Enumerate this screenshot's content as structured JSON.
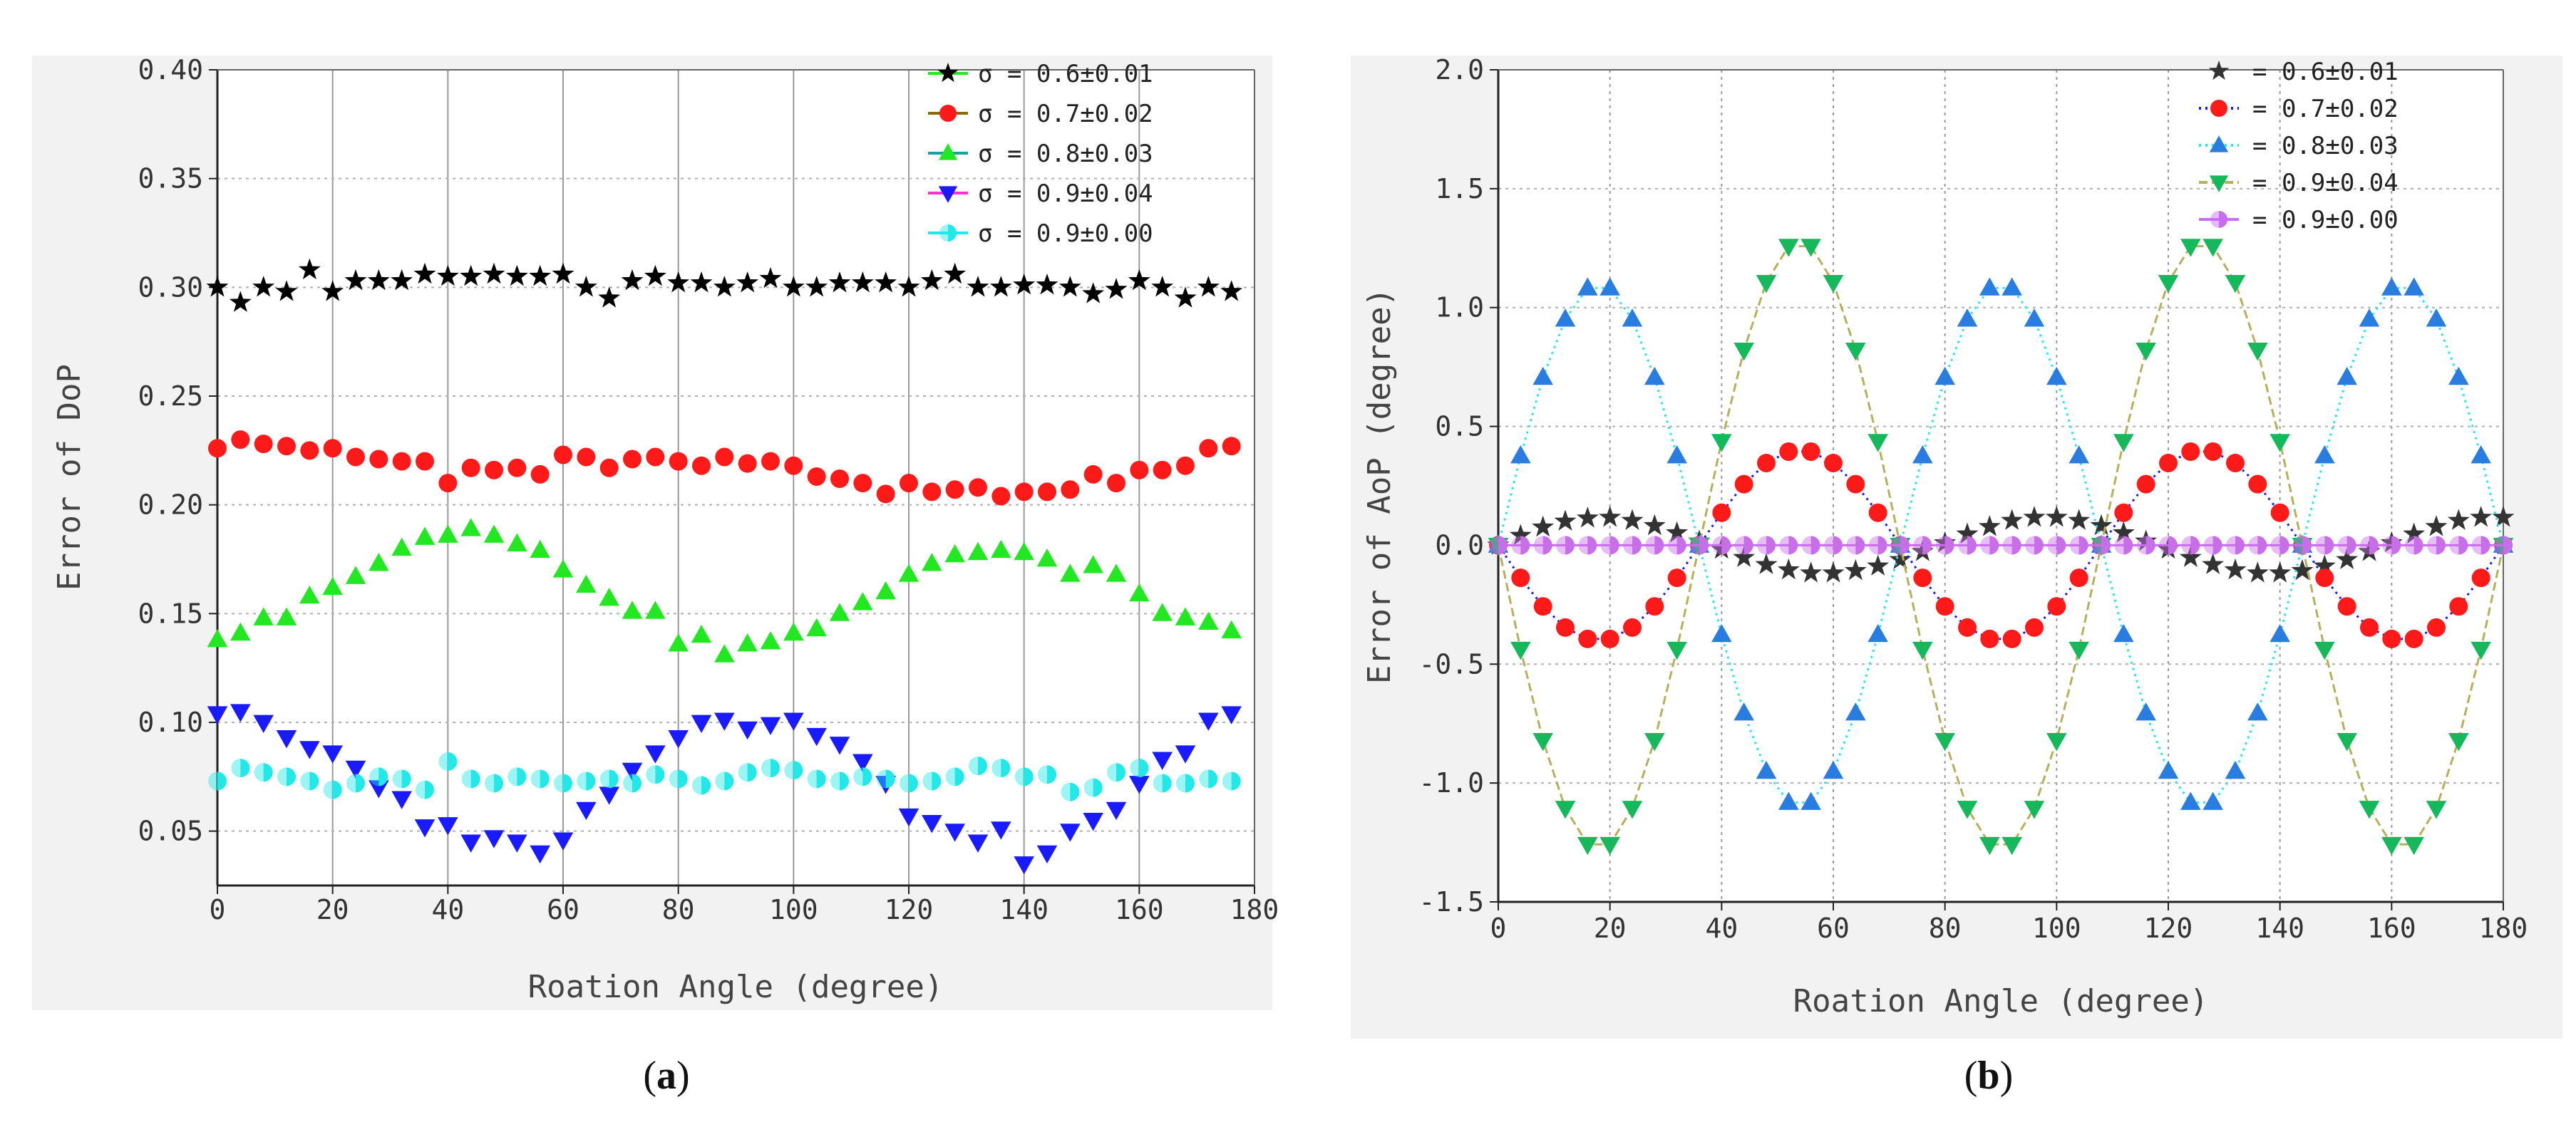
{
  "panel_labels": [
    "a",
    "b"
  ],
  "colors": {
    "black": "#000000",
    "red": "#ff1a1a",
    "green": "#22e822",
    "blue": "#1a1aff",
    "cyan": "#22e8e8",
    "darkgray": "#333333",
    "azure": "#2a7de0",
    "seagreen": "#15b85a",
    "violet": "#c86ee8",
    "olive": "#b5b05a",
    "maroon": "#8a6a10",
    "teal": "#1aa0a0",
    "magenta": "#ff33cc"
  },
  "chart_data": [
    {
      "type": "scatter",
      "panel": "a",
      "xlabel": "Roation Angle (degree)",
      "ylabel": "Error of DoP",
      "xlim": [
        0,
        180
      ],
      "ylim": [
        0.025,
        0.4
      ],
      "xticks": [
        "0",
        "20",
        "40",
        "60",
        "80",
        "100",
        "120",
        "140",
        "160",
        "180"
      ],
      "yticks": [
        "0.05",
        "0.10",
        "0.15",
        "0.20",
        "0.25",
        "0.30",
        "0.35",
        "0.40"
      ],
      "grid": "dotted",
      "legend_position": "top-right",
      "x": [
        0,
        4,
        8,
        12,
        16,
        20,
        24,
        28,
        32,
        36,
        40,
        44,
        48,
        52,
        56,
        60,
        64,
        68,
        72,
        76,
        80,
        84,
        88,
        92,
        96,
        100,
        104,
        108,
        112,
        116,
        120,
        124,
        128,
        132,
        136,
        140,
        144,
        148,
        152,
        156,
        160,
        164,
        168,
        172,
        176
      ],
      "series": [
        {
          "name": "σ = 0.6±0.01",
          "marker": "star",
          "color": "#000000",
          "line_color": "#22e822",
          "values": [
            0.3,
            0.293,
            0.3,
            0.298,
            0.308,
            0.298,
            0.303,
            0.303,
            0.303,
            0.306,
            0.305,
            0.305,
            0.306,
            0.305,
            0.305,
            0.306,
            0.3,
            0.295,
            0.303,
            0.305,
            0.302,
            0.302,
            0.3,
            0.302,
            0.304,
            0.3,
            0.3,
            0.302,
            0.302,
            0.302,
            0.3,
            0.303,
            0.306,
            0.3,
            0.3,
            0.301,
            0.301,
            0.3,
            0.297,
            0.299,
            0.303,
            0.3,
            0.295,
            0.3,
            0.298
          ]
        },
        {
          "name": "σ = 0.7±0.02",
          "marker": "circle",
          "color": "#ff1a1a",
          "line_color": "#8a6a10",
          "values": [
            0.226,
            0.23,
            0.228,
            0.227,
            0.225,
            0.226,
            0.222,
            0.221,
            0.22,
            0.22,
            0.21,
            0.217,
            0.216,
            0.217,
            0.214,
            0.223,
            0.222,
            0.217,
            0.221,
            0.222,
            0.22,
            0.218,
            0.222,
            0.219,
            0.22,
            0.218,
            0.213,
            0.212,
            0.21,
            0.205,
            0.21,
            0.206,
            0.207,
            0.208,
            0.204,
            0.206,
            0.206,
            0.207,
            0.214,
            0.21,
            0.216,
            0.216,
            0.218,
            0.226,
            0.227
          ]
        },
        {
          "name": "σ = 0.8±0.03",
          "marker": "triangle-up",
          "color": "#22e822",
          "line_color": "#1aa0a0",
          "values": [
            0.138,
            0.141,
            0.148,
            0.148,
            0.158,
            0.162,
            0.167,
            0.173,
            0.18,
            0.185,
            0.186,
            0.189,
            0.186,
            0.182,
            0.179,
            0.17,
            0.163,
            0.157,
            0.151,
            0.151,
            0.136,
            0.14,
            0.131,
            0.136,
            0.137,
            0.141,
            0.143,
            0.15,
            0.155,
            0.16,
            0.168,
            0.173,
            0.177,
            0.178,
            0.179,
            0.178,
            0.175,
            0.168,
            0.172,
            0.168,
            0.159,
            0.15,
            0.148,
            0.146,
            0.142
          ]
        },
        {
          "name": "σ = 0.9±0.04",
          "marker": "triangle-down",
          "color": "#1a1aff",
          "line_color": "#ff33cc",
          "values": [
            0.104,
            0.105,
            0.1,
            0.093,
            0.088,
            0.086,
            0.079,
            0.07,
            0.065,
            0.052,
            0.053,
            0.045,
            0.047,
            0.045,
            0.04,
            0.046,
            0.06,
            0.067,
            0.078,
            0.086,
            0.093,
            0.1,
            0.101,
            0.097,
            0.099,
            0.101,
            0.094,
            0.09,
            0.082,
            0.072,
            0.057,
            0.054,
            0.05,
            0.045,
            0.051,
            0.035,
            0.04,
            0.05,
            0.055,
            0.06,
            0.072,
            0.083,
            0.086,
            0.101,
            0.104
          ]
        },
        {
          "name": "σ = 0.9±0.00",
          "marker": "half-circle",
          "color": "#22e8e8",
          "line_color": "#22e8e8",
          "values": [
            0.073,
            0.079,
            0.077,
            0.075,
            0.073,
            0.069,
            0.072,
            0.075,
            0.074,
            0.069,
            0.082,
            0.074,
            0.072,
            0.075,
            0.074,
            0.072,
            0.073,
            0.074,
            0.072,
            0.076,
            0.074,
            0.071,
            0.073,
            0.077,
            0.079,
            0.078,
            0.074,
            0.073,
            0.075,
            0.074,
            0.072,
            0.073,
            0.075,
            0.08,
            0.079,
            0.075,
            0.076,
            0.068,
            0.07,
            0.077,
            0.079,
            0.072,
            0.072,
            0.074,
            0.073
          ]
        }
      ]
    },
    {
      "type": "line",
      "panel": "b",
      "xlabel": "Roation Angle (degree)",
      "ylabel": "Error of AoP (degree)",
      "xlim": [
        0,
        180
      ],
      "ylim": [
        -1.5,
        2.0
      ],
      "xticks": [
        "0",
        "20",
        "40",
        "60",
        "80",
        "100",
        "120",
        "140",
        "160",
        "180"
      ],
      "yticks": [
        "-1.5",
        "-1.0",
        "-0.5",
        "0.0",
        "0.5",
        "1.0",
        "1.5",
        "2.0"
      ],
      "grid": "dotted",
      "legend_position": "top-right",
      "x": [
        0,
        4,
        8,
        12,
        16,
        20,
        24,
        28,
        32,
        36,
        40,
        44,
        48,
        52,
        56,
        60,
        64,
        68,
        72,
        76,
        80,
        84,
        88,
        92,
        96,
        100,
        104,
        108,
        112,
        116,
        120,
        124,
        128,
        132,
        136,
        140,
        144,
        148,
        152,
        156,
        160,
        164,
        168,
        172,
        176,
        180
      ],
      "series": [
        {
          "name": "= 0.6±0.01",
          "marker": "star",
          "color": "#333333",
          "line_color": "#333333",
          "line_style": "none",
          "values": [
            0.0,
            0.041,
            0.076,
            0.101,
            0.114,
            0.117,
            0.104,
            0.082,
            0.052,
            0.017,
            -0.017,
            -0.052,
            -0.082,
            -0.104,
            -0.117,
            -0.117,
            -0.107,
            -0.088,
            -0.061,
            -0.027,
            0.01,
            0.047,
            0.078,
            0.104,
            0.117,
            0.117,
            0.104,
            0.082,
            0.052,
            0.017,
            -0.017,
            -0.052,
            -0.082,
            -0.104,
            -0.117,
            -0.117,
            -0.107,
            -0.088,
            -0.061,
            -0.027,
            0.01,
            0.047,
            0.078,
            0.104,
            0.117,
            0.117
          ]
        },
        {
          "name": "= 0.7±0.02",
          "marker": "circle",
          "color": "#ff1a1a",
          "line_color": "#1a1aff",
          "line_style": "dotted",
          "values": [
            0.0,
            -0.137,
            -0.257,
            -0.346,
            -0.394,
            -0.394,
            -0.346,
            -0.257,
            -0.137,
            0.0,
            0.137,
            0.257,
            0.346,
            0.394,
            0.394,
            0.346,
            0.257,
            0.137,
            0.0,
            -0.137,
            -0.257,
            -0.346,
            -0.394,
            -0.394,
            -0.346,
            -0.257,
            -0.137,
            0.0,
            0.137,
            0.257,
            0.346,
            0.394,
            0.394,
            0.346,
            0.257,
            0.137,
            0.0,
            -0.137,
            -0.257,
            -0.346,
            -0.394,
            -0.394,
            -0.346,
            -0.257,
            -0.137,
            0.0
          ]
        },
        {
          "name": "= 0.8±0.03",
          "marker": "triangle-up",
          "color": "#2a7de0",
          "line_color": "#22e8e8",
          "line_style": "dotted",
          "values": [
            0.0,
            0.376,
            0.706,
            0.951,
            1.082,
            1.082,
            0.951,
            0.706,
            0.376,
            0.0,
            -0.376,
            -0.706,
            -0.951,
            -1.082,
            -1.082,
            -0.951,
            -0.706,
            -0.376,
            0.0,
            0.376,
            0.706,
            0.951,
            1.082,
            1.082,
            0.951,
            0.706,
            0.376,
            0.0,
            -0.376,
            -0.706,
            -0.951,
            -1.082,
            -1.082,
            -0.951,
            -0.706,
            -0.376,
            0.0,
            0.376,
            0.706,
            0.951,
            1.082,
            1.082,
            0.951,
            0.706,
            0.376,
            0.0
          ]
        },
        {
          "name": "= 0.9±0.04",
          "marker": "triangle-down",
          "color": "#15b85a",
          "line_color": "#b5b05a",
          "line_style": "dashed",
          "values": [
            0.0,
            -0.437,
            -0.821,
            -1.106,
            -1.258,
            -1.258,
            -1.106,
            -0.821,
            -0.437,
            0.0,
            0.437,
            0.821,
            1.106,
            1.258,
            1.258,
            1.106,
            0.821,
            0.437,
            0.0,
            -0.437,
            -0.821,
            -1.106,
            -1.258,
            -1.258,
            -1.106,
            -0.821,
            -0.437,
            0.0,
            0.437,
            0.821,
            1.106,
            1.258,
            1.258,
            1.106,
            0.821,
            0.437,
            0.0,
            -0.437,
            -0.821,
            -1.106,
            -1.258,
            -1.258,
            -1.106,
            -0.821,
            -0.437,
            0.0
          ]
        },
        {
          "name": "= 0.9±0.00",
          "marker": "half-circle",
          "color": "#c86ee8",
          "line_color": "#c86ee8",
          "line_style": "solid",
          "values": [
            0,
            0,
            0,
            0,
            0,
            0,
            0,
            0,
            0,
            0,
            0,
            0,
            0,
            0,
            0,
            0,
            0,
            0,
            0,
            0,
            0,
            0,
            0,
            0,
            0,
            0,
            0,
            0,
            0,
            0,
            0,
            0,
            0,
            0,
            0,
            0,
            0,
            0,
            0,
            0,
            0,
            0,
            0,
            0,
            0,
            0
          ]
        }
      ]
    }
  ]
}
